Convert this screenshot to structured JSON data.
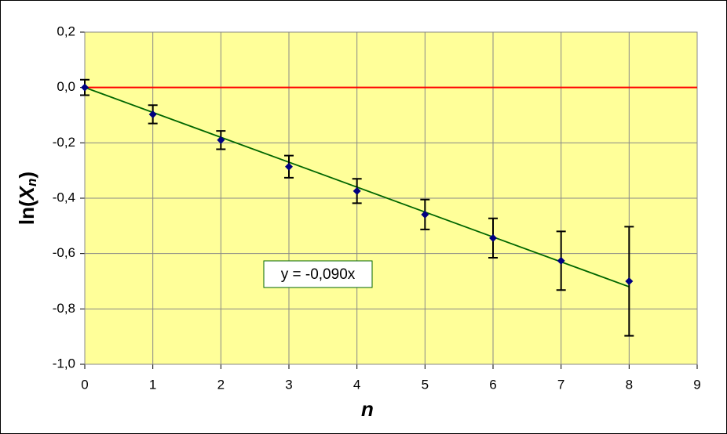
{
  "chart_data": {
    "type": "scatter",
    "ylabel_parts": [
      "ln(",
      "X",
      "n",
      ")"
    ],
    "xlabel": "n",
    "x": [
      0,
      1,
      2,
      3,
      4,
      5,
      6,
      7,
      8
    ],
    "series": [
      {
        "color": "#000080",
        "values": [
          0,
          -0.097,
          -0.19,
          -0.286,
          -0.374,
          -0.459,
          -0.544,
          -0.626,
          -0.7
        ],
        "errors": [
          0.028,
          0.033,
          0.033,
          0.04,
          0.044,
          0.054,
          0.071,
          0.106,
          0.197
        ]
      }
    ],
    "trendline": {
      "slope": -0.09,
      "label": "y = -0,090x",
      "color": "#006600"
    },
    "reference_line": {
      "y": 0,
      "color": "#ff0000"
    },
    "xlim": [
      0,
      9
    ],
    "xticks": [
      0,
      1,
      2,
      3,
      4,
      5,
      6,
      7,
      8,
      9
    ],
    "ylim": [
      -1.0,
      0.2
    ],
    "yticks": [
      {
        "value": -1.0,
        "label": "-1,0"
      },
      {
        "value": -0.8,
        "label": "-0,8"
      },
      {
        "value": -0.6,
        "label": "-0,6"
      },
      {
        "value": -0.4,
        "label": "-0,4"
      },
      {
        "value": -0.2,
        "label": "-0,2"
      },
      {
        "value": 0.0,
        "label": "0,0"
      },
      {
        "value": 0.2,
        "label": "0,2"
      }
    ],
    "grid": true,
    "plot_background": "#ffff99"
  }
}
